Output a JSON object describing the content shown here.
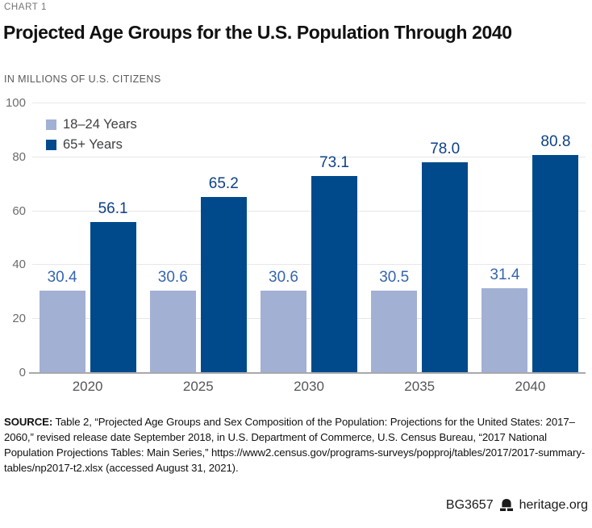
{
  "header": {
    "kicker": "CHART 1",
    "title": "Projected Age Groups for the U.S. Population Through 2040",
    "subtitle": "IN MILLIONS OF U.S. CITIZENS"
  },
  "chart_data": {
    "type": "bar",
    "categories": [
      "2020",
      "2025",
      "2030",
      "2035",
      "2040"
    ],
    "series": [
      {
        "name": "18–24 Years",
        "color": "#a2b0d4",
        "label_color": "#3565af",
        "values": [
          30.4,
          30.6,
          30.6,
          30.5,
          31.4
        ],
        "value_labels": [
          "30.4",
          "30.6",
          "30.6",
          "30.5",
          "31.4"
        ]
      },
      {
        "name": "65+ Years",
        "color": "#004a8c",
        "label_color": "#0e4186",
        "values": [
          56.1,
          65.2,
          73.1,
          78.0,
          80.8
        ],
        "value_labels": [
          "56.1",
          "65.2",
          "73.1",
          "78.0",
          "80.8"
        ]
      }
    ],
    "title": "Projected Age Groups for the U.S. Population Through 2040",
    "xlabel": "",
    "ylabel": "IN MILLIONS OF U.S. CITIZENS",
    "ylim": [
      0,
      100
    ],
    "ytick_step": 20,
    "grid": "horizontal-only",
    "legend_position": "top-left",
    "colors": {
      "gridline": "#e6e7e8",
      "baseline": "#a7a9ac",
      "tick_text": "#6b6c6e"
    }
  },
  "source": {
    "label": "SOURCE:",
    "text": " Table 2, “Projected Age Groups and Sex Composition of the Population: Projections for the United States: 2017–2060,” revised release date September 2018, in U.S. Department of Commerce, U.S. Census Bureau, “2017 National Population Projections Tables: Main Series,” https://www2.census.gov/programs-surveys/popproj/tables/2017/2017-summary-tables/np2017-t2.xlsx (accessed August 31, 2021)."
  },
  "footer": {
    "doc_id": "BG3657",
    "site": "heritage.org",
    "icon": "liberty-bell-icon"
  }
}
